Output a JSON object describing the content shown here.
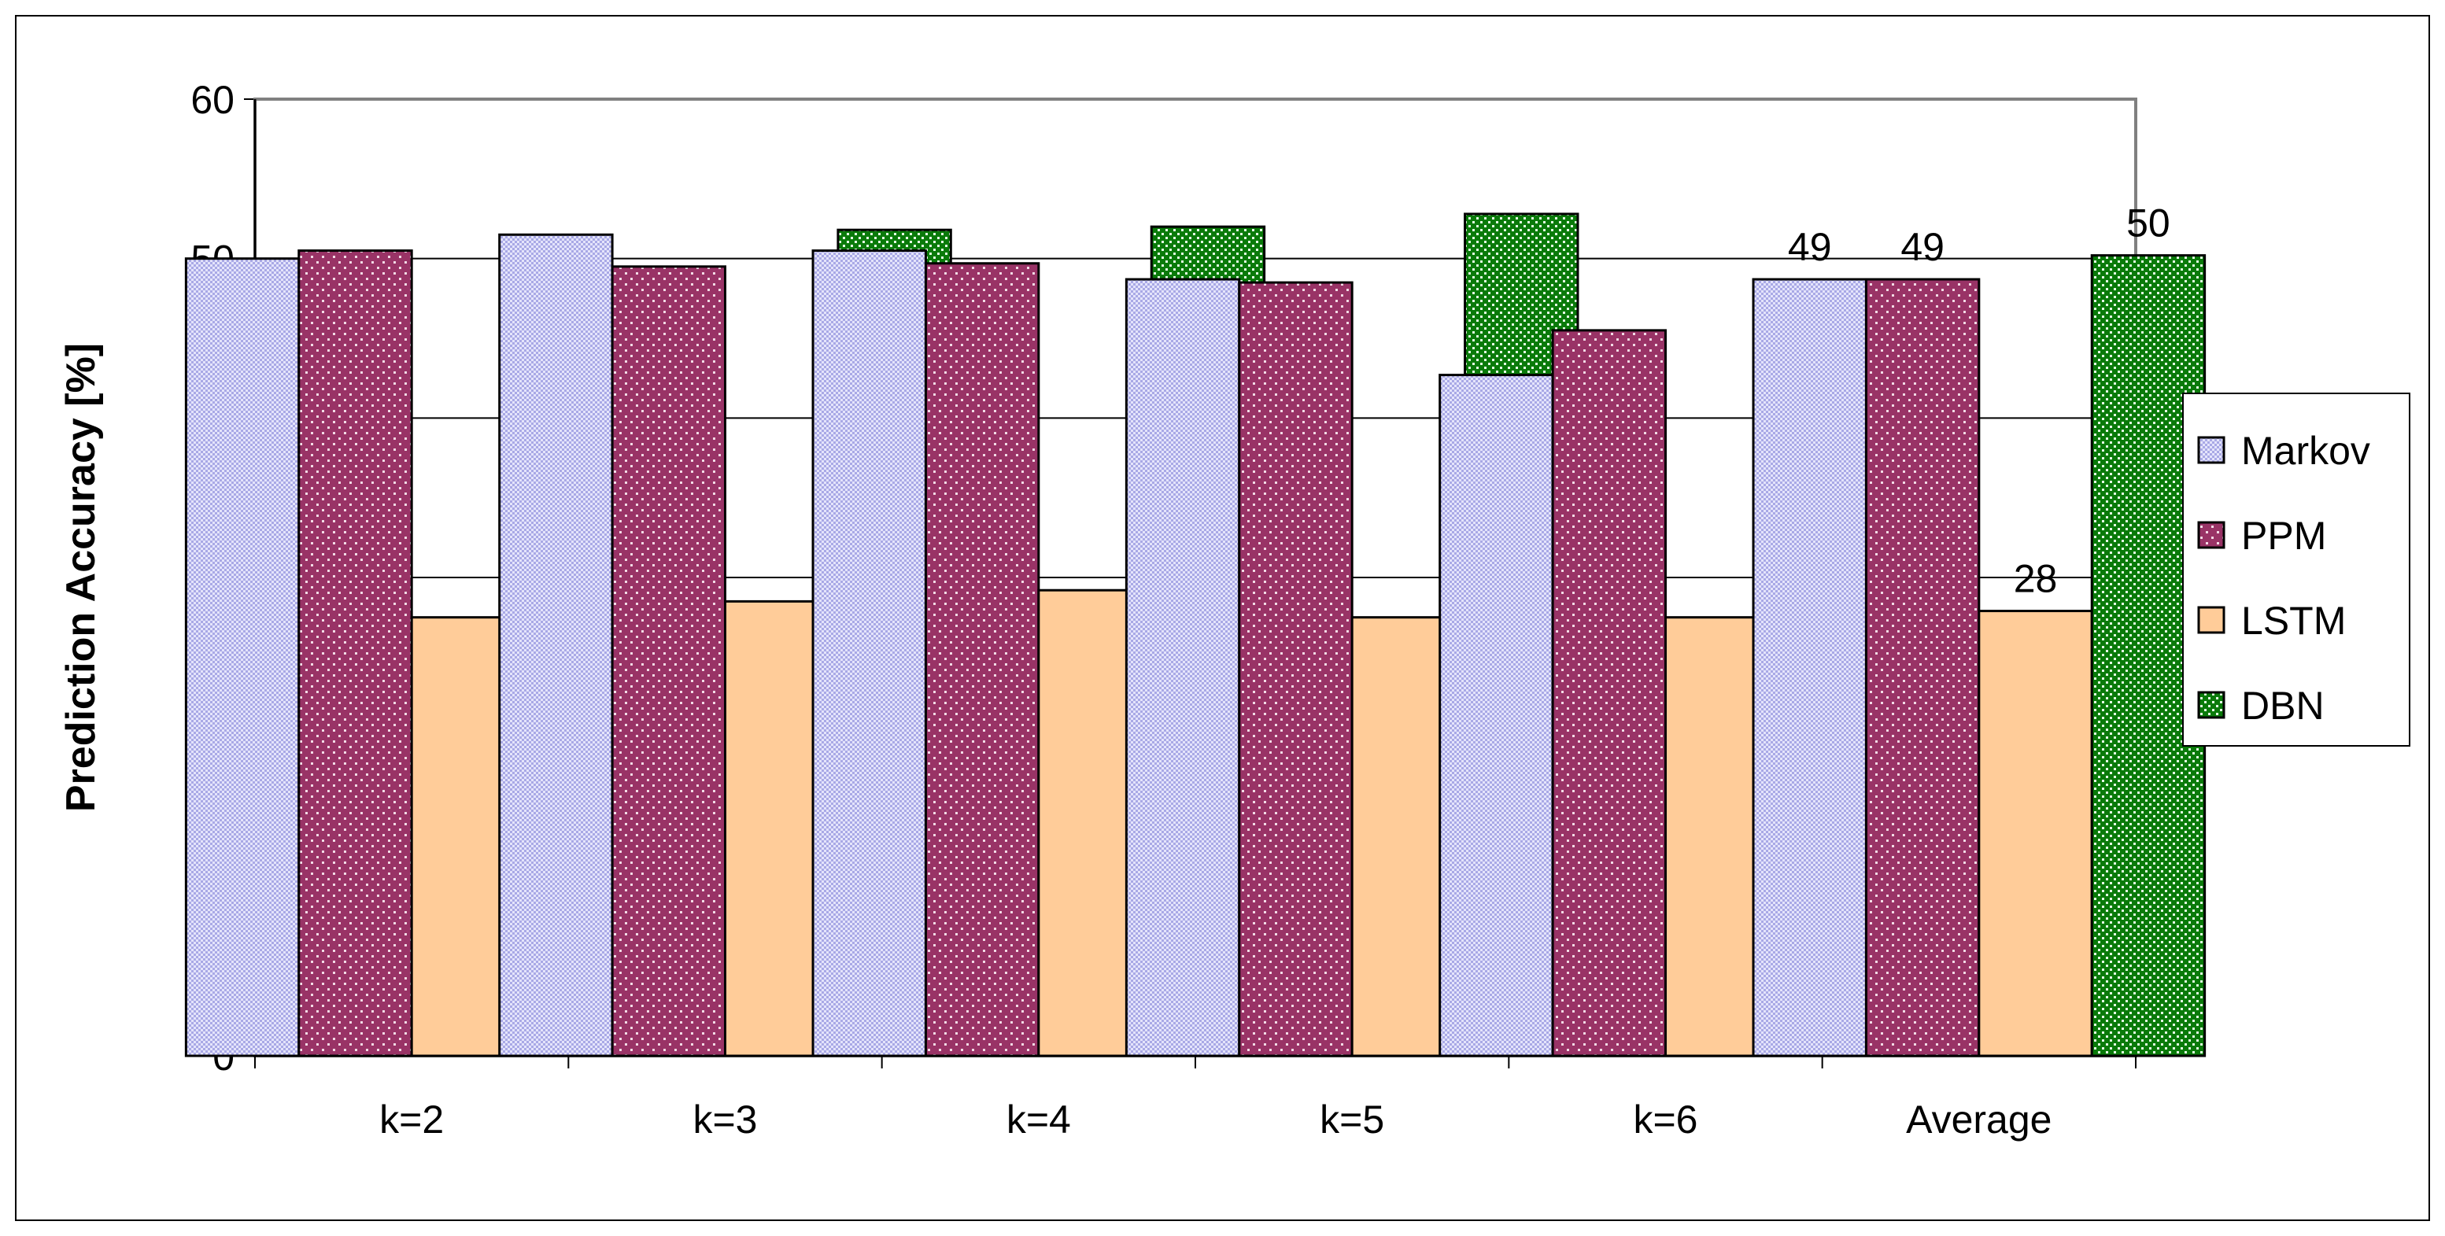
{
  "chart_data": {
    "type": "bar",
    "title": "",
    "xlabel": "",
    "ylabel": "Prediction Accuracy [%]",
    "ylim": [
      0,
      60
    ],
    "yticks": [
      0,
      10,
      20,
      30,
      40,
      50,
      60
    ],
    "grid": true,
    "legend_position": "right",
    "categories": [
      "k=2",
      "k=3",
      "k=4",
      "k=5",
      "k=6",
      "Average"
    ],
    "series": [
      {
        "name": "Markov",
        "values": [
          50,
          51.5,
          50.5,
          48.7,
          42.7,
          48.7
        ],
        "color": "#c8c8f0",
        "pattern": "checker"
      },
      {
        "name": "PPM",
        "values": [
          50.5,
          49.5,
          49.7,
          48.5,
          45.5,
          48.7
        ],
        "color": "#993366",
        "pattern": "dots"
      },
      {
        "name": "LSTM",
        "values": [
          27.5,
          28.5,
          29.2,
          27.5,
          27.5,
          27.9
        ],
        "color": "#ffcc99",
        "pattern": "solid"
      },
      {
        "name": "DBN",
        "values": [
          47.5,
          51.8,
          52.0,
          52.8,
          48.3,
          50.2
        ],
        "color": "#008000",
        "pattern": "grid"
      }
    ],
    "data_labels": [
      {
        "category": "Average",
        "series": "Markov",
        "text": "49"
      },
      {
        "category": "Average",
        "series": "PPM",
        "text": "49"
      },
      {
        "category": "Average",
        "series": "LSTM",
        "text": "28"
      },
      {
        "category": "Average",
        "series": "DBN",
        "text": "50"
      }
    ]
  }
}
